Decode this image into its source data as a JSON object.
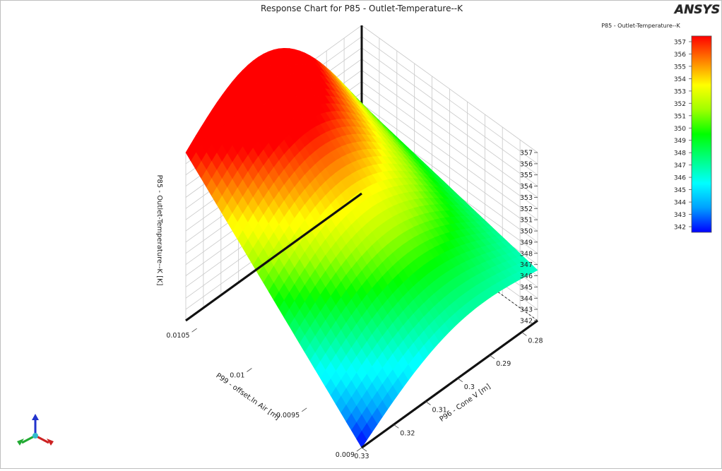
{
  "chart_data": {
    "type": "surface3d",
    "title": "Response Chart for P85 - Outlet-Temperature--K",
    "xlabel": "P99 - offset.In Air  [m]",
    "ylabel": "P96 - Cone V  [m]",
    "zlabel": "P85 - Outlet-Temperature--K  [K]",
    "x_ticks": [
      "0.009",
      "0.0095",
      "0.01",
      "0.0105"
    ],
    "y_ticks": [
      "0.28",
      "0.29",
      "0.3",
      "0.31",
      "0.32",
      "0.33"
    ],
    "z_ticks": [
      "342",
      "343",
      "344",
      "345",
      "346",
      "347",
      "348",
      "349",
      "350",
      "351",
      "352",
      "353",
      "354",
      "355",
      "356",
      "357"
    ],
    "xlim": [
      0.009,
      0.0106
    ],
    "ylim": [
      0.275,
      0.33
    ],
    "zlim": [
      342,
      357
    ],
    "corners": {
      "x0.009_y0.33": 342,
      "x0.009_y0.275": 346.5,
      "x0.0106_y0.275": 350,
      "x0.0106_y0.33": 357
    },
    "peak": {
      "x": 0.0106,
      "y": 0.3,
      "z": 357
    },
    "legend": {
      "title": "P85 - Outlet-Temperature--K",
      "ticks": [
        "357",
        "356",
        "355",
        "354",
        "353",
        "352",
        "351",
        "350",
        "349",
        "348",
        "347",
        "346",
        "345",
        "344",
        "343",
        "342"
      ],
      "position": "top-right"
    },
    "colors": [
      "#0000ff",
      "#00a0ff",
      "#00ffff",
      "#00ff80",
      "#00ff00",
      "#a0ff00",
      "#ffff00",
      "#ff8000",
      "#ff0000"
    ]
  },
  "logo": {
    "text": "ANSYS"
  }
}
